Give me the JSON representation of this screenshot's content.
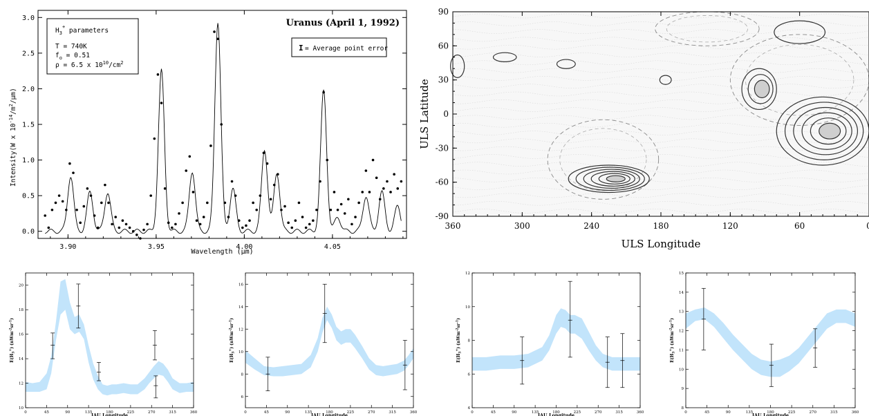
{
  "chart_data": [
    {
      "type": "scatter",
      "title": "Uranus (April 1, 1992)",
      "xlabel": "Wavelength (μm)",
      "ylabel": "Intensity(W x 10",
      "ylabel_exp": "-14",
      "ylabel_units": "/m",
      "ylabel_exp2": "2",
      "ylabel_tail": "/μm)",
      "xlim": [
        3.883,
        4.092
      ],
      "ylim": [
        -0.1,
        3.1
      ],
      "xticks": [
        3.9,
        3.95,
        4.0,
        4.05
      ],
      "xtick_labels": [
        "3.90",
        "3.95",
        "4.00",
        "4.05"
      ],
      "yticks": [
        0.0,
        0.5,
        1.0,
        1.5,
        2.0,
        2.5,
        3.0
      ],
      "ytick_labels": [
        "0.0",
        "0.5",
        "1.0",
        "1.5",
        "2.0",
        "2.5",
        "3.0"
      ],
      "params_box": {
        "title": "H",
        "title_sub": "3",
        "title_sup": "+",
        "title_tail": " parameters",
        "lines": [
          "T = 740K",
          "f",
          "ρ = 6.5 x 10"
        ],
        "f_sub": "o",
        "f_tail": " = 0.51",
        "rho_sup": "10",
        "rho_tail": "/cm",
        "rho_sup2": "2"
      },
      "legend": {
        "symbol": "I",
        "text": "= Average point error"
      },
      "series": [
        {
          "kind": "line",
          "baseline": 0.0,
          "peaks": [
            {
              "x": 3.9015,
              "h": 0.78
            },
            {
              "x": 3.9125,
              "h": 0.55
            },
            {
              "x": 3.9225,
              "h": 0.55
            },
            {
              "x": 3.953,
              "h": 2.25
            },
            {
              "x": 3.9705,
              "h": 0.85
            },
            {
              "x": 3.985,
              "h": 2.95
            },
            {
              "x": 3.9935,
              "h": 0.6
            },
            {
              "x": 4.0115,
              "h": 1.15
            },
            {
              "x": 4.0185,
              "h": 0.82
            },
            {
              "x": 4.045,
              "h": 1.97
            },
            {
              "x": 4.053,
              "h": 0.2
            },
            {
              "x": 4.069,
              "h": 0.5
            },
            {
              "x": 4.078,
              "h": 0.55
            },
            {
              "x": 4.087,
              "h": 0.35
            }
          ]
        },
        {
          "kind": "points",
          "x": [
            3.887,
            3.889,
            3.891,
            3.893,
            3.895,
            3.897,
            3.899,
            3.901,
            3.903,
            3.905,
            3.907,
            3.909,
            3.911,
            3.913,
            3.915,
            3.917,
            3.919,
            3.921,
            3.923,
            3.925,
            3.927,
            3.929,
            3.931,
            3.933,
            3.935,
            3.937,
            3.939,
            3.941,
            3.943,
            3.945,
            3.947,
            3.949,
            3.951,
            3.953,
            3.955,
            3.957,
            3.959,
            3.961,
            3.963,
            3.965,
            3.967,
            3.969,
            3.971,
            3.973,
            3.975,
            3.977,
            3.979,
            3.981,
            3.983,
            3.985,
            3.987,
            3.989,
            3.991,
            3.993,
            3.995,
            3.997,
            3.999,
            4.001,
            4.003,
            4.005,
            4.007,
            4.009,
            4.011,
            4.013,
            4.015,
            4.017,
            4.019,
            4.021,
            4.023,
            4.025,
            4.027,
            4.029,
            4.031,
            4.033,
            4.035,
            4.037,
            4.039,
            4.041,
            4.043,
            4.045,
            4.047,
            4.049,
            4.051,
            4.053,
            4.055,
            4.057,
            4.059,
            4.061,
            4.063,
            4.065,
            4.067,
            4.069,
            4.071,
            4.073,
            4.075,
            4.077,
            4.079,
            4.081,
            4.083,
            4.085,
            4.087,
            4.089
          ],
          "y": [
            0.22,
            0.05,
            0.3,
            0.4,
            0.5,
            0.42,
            0.3,
            0.95,
            0.82,
            0.3,
            0.12,
            0.35,
            0.6,
            0.5,
            0.22,
            0.05,
            0.4,
            0.65,
            0.4,
            0.1,
            0.2,
            0.05,
            0.15,
            0.1,
            0.05,
            0.0,
            -0.05,
            -0.1,
            0.02,
            0.1,
            0.5,
            1.3,
            2.2,
            1.8,
            0.6,
            0.12,
            0.05,
            0.1,
            0.25,
            0.4,
            0.85,
            1.05,
            0.55,
            0.15,
            0.1,
            0.2,
            0.4,
            1.2,
            2.8,
            2.7,
            1.5,
            0.4,
            0.2,
            0.7,
            0.5,
            0.15,
            0.05,
            0.08,
            0.15,
            0.4,
            0.3,
            0.5,
            1.1,
            0.95,
            0.45,
            0.65,
            0.8,
            0.3,
            0.35,
            0.12,
            0.05,
            0.15,
            0.4,
            0.2,
            0.05,
            0.1,
            0.15,
            0.3,
            0.7,
            1.95,
            1.0,
            0.3,
            0.55,
            0.3,
            0.38,
            0.25,
            0.45,
            0.1,
            0.2,
            0.4,
            0.55,
            0.85,
            0.55,
            1.0,
            0.75,
            0.45,
            0.6,
            0.7,
            0.55,
            0.8,
            0.6,
            0.7
          ]
        }
      ]
    },
    {
      "type": "heatmap",
      "xlabel": "ULS Longitude",
      "ylabel": "ULS Latitude",
      "xlim": [
        360,
        0
      ],
      "ylim": [
        -90,
        90
      ],
      "xticks": [
        360,
        300,
        240,
        180,
        120,
        60,
        0
      ],
      "yticks": [
        90,
        60,
        30,
        0,
        -30,
        -60,
        -90
      ],
      "contours_solid": [
        {
          "lon": 225,
          "lat": -57,
          "rx": 35,
          "ry": 12,
          "levels": 6
        },
        {
          "lon": 40,
          "lat": -15,
          "rx": 40,
          "ry": 30,
          "levels": 6
        },
        {
          "lon": 95,
          "lat": 22,
          "rx": 15,
          "ry": 18,
          "levels": 3
        },
        {
          "lon": 60,
          "lat": 72,
          "rx": 22,
          "ry": 10,
          "levels": 1
        },
        {
          "lon": 315,
          "lat": 50,
          "rx": 10,
          "ry": 4,
          "levels": 1
        },
        {
          "lon": 262,
          "lat": 44,
          "rx": 8,
          "ry": 4,
          "levels": 1
        },
        {
          "lon": 176,
          "lat": 30,
          "rx": 5,
          "ry": 4,
          "levels": 1
        },
        {
          "lon": 356,
          "lat": 42,
          "rx": 6,
          "ry": 10,
          "levels": 1
        }
      ],
      "contours_dashed": [
        {
          "lon": 230,
          "lat": -40,
          "rx": 48,
          "ry": 35
        },
        {
          "lon": 60,
          "lat": 30,
          "rx": 60,
          "ry": 40
        },
        {
          "lon": 140,
          "lat": 75,
          "rx": 45,
          "ry": 15
        }
      ]
    },
    {
      "type": "line",
      "xlabel": "IAU Longitude",
      "ylabel": "E(H",
      "ylabel_sub": "3",
      "ylabel_sup": "+",
      "ylabel_tail": ") (nWm",
      "ylabel_sup2": "-2",
      "ylabel_unit2": "sr",
      "ylabel_sup3": "-1",
      "ylabel_end": ")",
      "xlim": [
        0,
        360
      ],
      "ylim": [
        10,
        21
      ],
      "xticks": [
        0,
        45,
        90,
        135,
        180,
        225,
        270,
        315,
        360
      ],
      "yticks": [
        10,
        12,
        14,
        16,
        18,
        20
      ],
      "band_color": "#c2e4fb",
      "band_x": [
        0,
        15,
        30,
        45,
        55,
        65,
        75,
        85,
        95,
        105,
        115,
        125,
        135,
        145,
        155,
        165,
        175,
        185,
        195,
        210,
        225,
        240,
        255,
        265,
        275,
        285,
        295,
        305,
        315,
        330,
        345,
        360
      ],
      "band_lo": [
        11.3,
        11.3,
        11.3,
        11.5,
        12.8,
        15.5,
        17.6,
        18.0,
        16.4,
        16.0,
        16.2,
        15.6,
        13.7,
        12.3,
        11.5,
        11.1,
        11.0,
        11.1,
        11.1,
        11.2,
        11.1,
        11.1,
        11.5,
        12.0,
        12.4,
        12.7,
        12.6,
        12.1,
        11.5,
        11.2,
        11.3,
        11.3
      ],
      "band_hi": [
        12.1,
        12.0,
        12.1,
        12.8,
        14.2,
        17.0,
        20.3,
        20.5,
        18.6,
        17.4,
        17.6,
        16.8,
        15.1,
        13.6,
        12.6,
        11.9,
        11.8,
        11.9,
        11.9,
        12.0,
        11.9,
        11.9,
        12.4,
        12.9,
        13.4,
        13.8,
        13.6,
        13.1,
        12.4,
        12.0,
        12.0,
        12.1
      ],
      "points": [
        {
          "x": 58,
          "y": 15.1,
          "lo": 14.0,
          "hi": 16.1
        },
        {
          "x": 113,
          "y": 18.3,
          "lo": 16.5,
          "hi": 20.1
        },
        {
          "x": 157,
          "y": 12.9,
          "lo": 12.2,
          "hi": 13.7
        },
        {
          "x": 277,
          "y": 15.1,
          "lo": 13.9,
          "hi": 16.3
        },
        {
          "x": 279,
          "y": 11.8,
          "lo": 10.8,
          "hi": 12.6
        }
      ]
    },
    {
      "type": "line",
      "xlabel": "IAU Longitude",
      "ylabel": "E(H",
      "ylabel_sub": "3",
      "ylabel_sup": "+",
      "ylabel_tail": ") (nWm",
      "ylabel_sup2": "-2",
      "ylabel_unit2": "sr",
      "ylabel_sup3": "-1",
      "ylabel_end": ")",
      "xlim": [
        0,
        360
      ],
      "ylim": [
        5,
        17
      ],
      "xticks": [
        0,
        45,
        90,
        135,
        180,
        225,
        270,
        315,
        360
      ],
      "yticks": [
        6,
        8,
        10,
        12,
        14,
        16
      ],
      "band_color": "#c2e4fb",
      "band_x": [
        0,
        20,
        40,
        60,
        80,
        100,
        120,
        140,
        155,
        165,
        175,
        185,
        195,
        205,
        215,
        225,
        235,
        250,
        265,
        280,
        295,
        310,
        325,
        340,
        350,
        360
      ],
      "band_lo": [
        9.0,
        8.4,
        7.9,
        7.8,
        7.8,
        7.9,
        8.0,
        8.6,
        10.0,
        11.7,
        12.8,
        12.1,
        11.0,
        10.6,
        10.8,
        10.8,
        10.3,
        9.4,
        8.4,
        7.9,
        7.8,
        7.9,
        8.0,
        8.3,
        8.8,
        9.4
      ],
      "band_hi": [
        10.1,
        9.4,
        8.7,
        8.6,
        8.7,
        8.8,
        8.9,
        9.7,
        11.2,
        13.0,
        14.0,
        13.3,
        12.2,
        11.8,
        12.0,
        12.0,
        11.5,
        10.5,
        9.4,
        8.8,
        8.7,
        8.8,
        8.9,
        9.2,
        9.7,
        10.3
      ],
      "points": [
        {
          "x": 48,
          "y": 8.0,
          "lo": 6.5,
          "hi": 9.5
        },
        {
          "x": 170,
          "y": 13.4,
          "lo": 10.8,
          "hi": 16.0
        },
        {
          "x": 342,
          "y": 8.8,
          "lo": 6.6,
          "hi": 11.0
        }
      ]
    },
    {
      "type": "line",
      "xlabel": "IAU Longitude",
      "ylabel": "E(H",
      "ylabel_sub": "3",
      "ylabel_sup": "+",
      "ylabel_tail": ") (nWm",
      "ylabel_sup2": "-2",
      "ylabel_unit2": "sr",
      "ylabel_sup3": "-1",
      "ylabel_end": ")",
      "xlim": [
        0,
        360
      ],
      "ylim": [
        4,
        12
      ],
      "xticks": [
        0,
        45,
        90,
        135,
        180,
        225,
        270,
        315,
        360
      ],
      "yticks": [
        4,
        6,
        8,
        10,
        12
      ],
      "band_color": "#c2e4fb",
      "band_x": [
        0,
        30,
        60,
        90,
        120,
        150,
        165,
        180,
        190,
        200,
        210,
        220,
        235,
        250,
        265,
        280,
        300,
        320,
        340,
        360
      ],
      "band_lo": [
        6.2,
        6.2,
        6.3,
        6.3,
        6.4,
        6.8,
        7.4,
        8.4,
        8.8,
        8.7,
        8.4,
        8.4,
        8.1,
        7.4,
        6.8,
        6.4,
        6.2,
        6.2,
        6.2,
        6.2
      ],
      "band_hi": [
        7.0,
        7.0,
        7.1,
        7.1,
        7.2,
        7.6,
        8.3,
        9.5,
        9.9,
        9.8,
        9.5,
        9.5,
        9.3,
        8.5,
        7.7,
        7.2,
        7.0,
        7.0,
        7.0,
        7.0
      ],
      "points": [
        {
          "x": 107,
          "y": 6.8,
          "lo": 5.4,
          "hi": 8.2
        },
        {
          "x": 210,
          "y": 9.2,
          "lo": 7.0,
          "hi": 11.5
        },
        {
          "x": 290,
          "y": 6.7,
          "lo": 5.2,
          "hi": 8.2
        },
        {
          "x": 322,
          "y": 6.8,
          "lo": 5.2,
          "hi": 8.4
        }
      ]
    },
    {
      "type": "line",
      "xlabel": "IAU Longitude",
      "ylabel": "E(H",
      "ylabel_sub": "3",
      "ylabel_sup": "+",
      "ylabel_tail": ") (nWm",
      "ylabel_sup2": "-2",
      "ylabel_unit2": "sr",
      "ylabel_sup3": "-1",
      "ylabel_end": ")",
      "xlim": [
        0,
        360
      ],
      "ylim": [
        8,
        15
      ],
      "xticks": [
        0,
        45,
        90,
        135,
        180,
        225,
        270,
        315,
        360
      ],
      "yticks": [
        8,
        9,
        10,
        11,
        12,
        13,
        14,
        15
      ],
      "band_color": "#c2e4fb",
      "band_x": [
        0,
        20,
        40,
        60,
        80,
        100,
        120,
        140,
        160,
        180,
        200,
        220,
        240,
        260,
        280,
        300,
        320,
        340,
        360
      ],
      "band_lo": [
        12.1,
        12.5,
        12.6,
        12.2,
        11.6,
        11.0,
        10.5,
        10.0,
        9.7,
        9.6,
        9.6,
        9.9,
        10.3,
        10.9,
        11.5,
        12.1,
        12.4,
        12.4,
        12.2
      ],
      "band_hi": [
        12.9,
        13.1,
        13.2,
        12.9,
        12.4,
        11.8,
        11.3,
        10.8,
        10.5,
        10.4,
        10.5,
        10.7,
        11.1,
        11.7,
        12.3,
        12.9,
        13.1,
        13.1,
        12.9
      ],
      "points": [
        {
          "x": 38,
          "y": 12.6,
          "lo": 11.0,
          "hi": 14.2
        },
        {
          "x": 182,
          "y": 10.2,
          "lo": 9.1,
          "hi": 11.3
        },
        {
          "x": 275,
          "y": 11.1,
          "lo": 10.1,
          "hi": 12.1
        }
      ]
    }
  ]
}
